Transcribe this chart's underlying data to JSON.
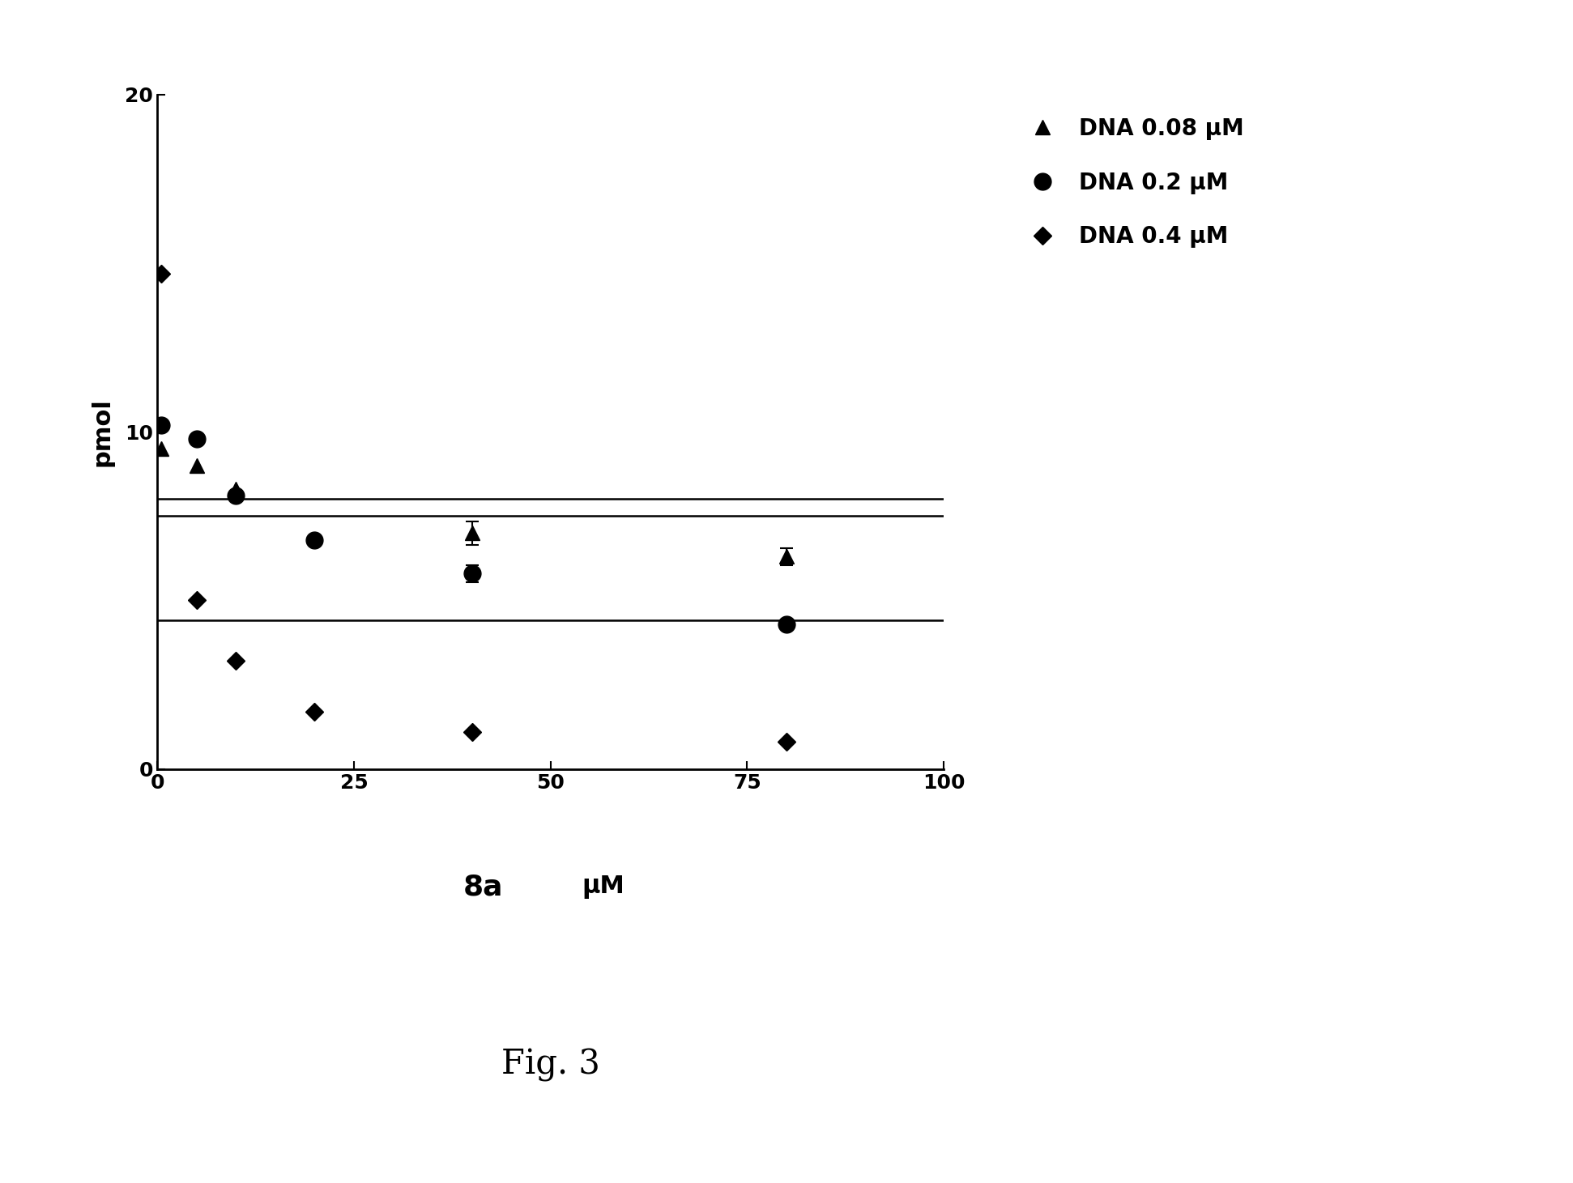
{
  "xlabel_bold": "8a",
  "xlabel_unit": "μM",
  "ylabel": "pmol",
  "xlim": [
    0,
    100
  ],
  "ylim": [
    0,
    20
  ],
  "xticks": [
    0,
    25,
    50,
    75,
    100
  ],
  "yticks": [
    0,
    10,
    20
  ],
  "fig_caption": "Fig. 3",
  "series": [
    {
      "label": "DNA 0.08 μM",
      "marker": "^",
      "x": [
        0.5,
        5,
        10,
        40,
        80
      ],
      "y": [
        9.5,
        9.0,
        8.3,
        7.0,
        6.3
      ],
      "yerr": [
        null,
        null,
        null,
        0.35,
        0.25
      ],
      "fit_Kd": 80.0,
      "fit_plateau": 5.5
    },
    {
      "label": "DNA 0.2 μM",
      "marker": "o",
      "x": [
        0.5,
        5,
        10,
        20,
        40,
        80
      ],
      "y": [
        10.2,
        9.8,
        8.1,
        6.8,
        5.8,
        4.3
      ],
      "yerr": [
        null,
        null,
        null,
        null,
        0.25,
        null
      ],
      "fit_Kd": 30.0,
      "fit_plateau": 3.5
    },
    {
      "label": "DNA 0.4 μM",
      "marker": "D",
      "x": [
        0.5,
        5,
        10,
        20,
        40,
        80
      ],
      "y": [
        14.7,
        5.0,
        3.2,
        1.7,
        1.1,
        0.8
      ],
      "yerr": [
        null,
        null,
        null,
        null,
        null,
        null
      ],
      "fit_Kd": 3.5,
      "fit_plateau": 0.3
    }
  ],
  "marker_sizes": [
    13,
    15,
    11
  ],
  "line_width": 1.8,
  "font_size_ticks": 18,
  "font_size_ylabel": 22,
  "font_size_xlabel_bold": 26,
  "font_size_xlabel_unit": 22,
  "font_size_legend": 20,
  "font_size_caption": 30,
  "background_color": "#ffffff"
}
